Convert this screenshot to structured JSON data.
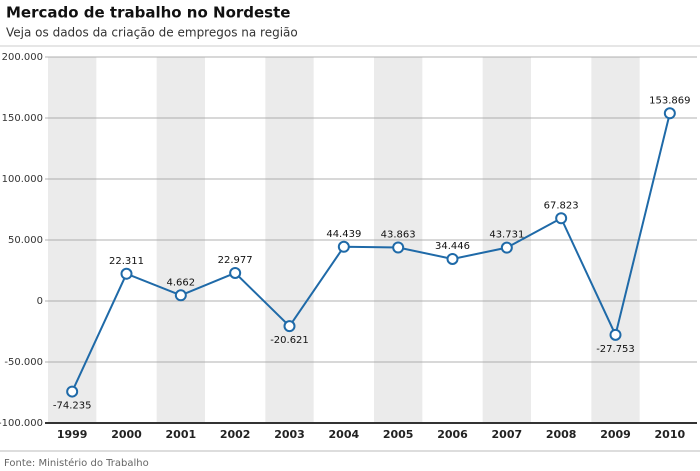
{
  "chart_data": {
    "type": "line",
    "title": "Mercado de trabalho no Nordeste",
    "subtitle": "Veja os dados da criação de empregos na região",
    "source": "Fonte: Ministério do Trabalho",
    "categories": [
      "1999",
      "2000",
      "2001",
      "2002",
      "2003",
      "2004",
      "2005",
      "2006",
      "2007",
      "2008",
      "2009",
      "2010"
    ],
    "values": [
      -74235,
      22311,
      4662,
      22977,
      -20621,
      44439,
      43863,
      34446,
      43731,
      67823,
      -27753,
      153869
    ],
    "value_labels": [
      "-74.235",
      "22.311",
      "4.662",
      "22.977",
      "-20.621",
      "44.439",
      "43.863",
      "34.446",
      "43.731",
      "67.823",
      "-27.753",
      "153.869"
    ],
    "color": "#1f6aa8",
    "ylim": [
      -100000,
      200000
    ],
    "yticks": [
      {
        "value": -100000,
        "label": "-100.000"
      },
      {
        "value": -50000,
        "label": "-50.000"
      },
      {
        "value": 0,
        "label": "0"
      },
      {
        "value": 50000,
        "label": "50.000"
      },
      {
        "value": 100000,
        "label": "100.000"
      },
      {
        "value": 150000,
        "label": "150.000"
      },
      {
        "value": 200000,
        "label": "200.000"
      }
    ],
    "grid": true
  }
}
